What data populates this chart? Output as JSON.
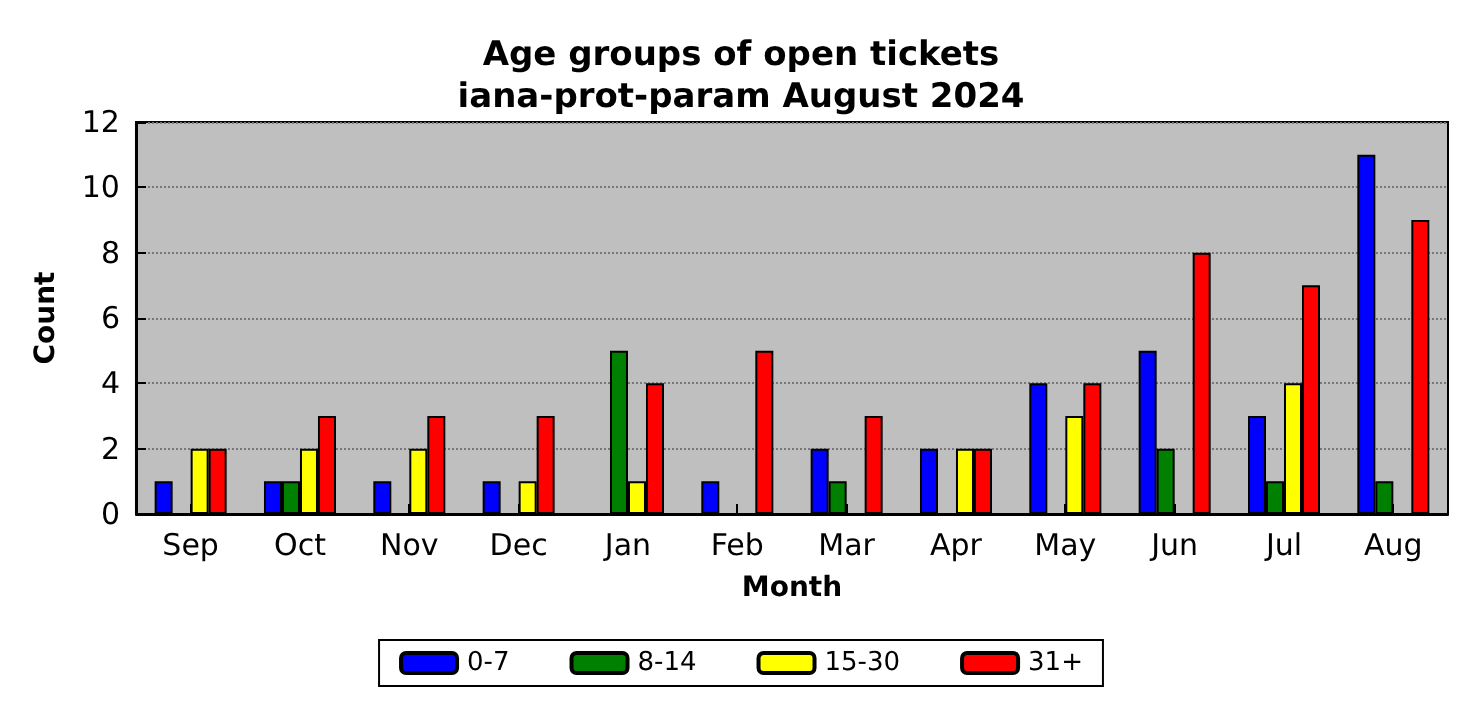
{
  "chart_data": {
    "type": "bar",
    "title": "Age groups of open tickets\niana-prot-param August 2024",
    "xlabel": "Month",
    "ylabel": "Count",
    "categories": [
      "Sep",
      "Oct",
      "Nov",
      "Dec",
      "Jan",
      "Feb",
      "Mar",
      "Apr",
      "May",
      "Jun",
      "Jul",
      "Aug"
    ],
    "series": [
      {
        "name": "0-7",
        "color": "#0000ff",
        "values": [
          1,
          1,
          1,
          1,
          0,
          1,
          2,
          2,
          4,
          5,
          3,
          11
        ]
      },
      {
        "name": "8-14",
        "color": "#008000",
        "values": [
          0,
          1,
          0,
          0,
          5,
          0,
          1,
          0,
          0,
          2,
          1,
          1
        ]
      },
      {
        "name": "15-30",
        "color": "#ffff00",
        "values": [
          2,
          2,
          2,
          1,
          1,
          0,
          0,
          2,
          3,
          0,
          4,
          0
        ]
      },
      {
        "name": "31+",
        "color": "#ff0000",
        "values": [
          2,
          3,
          3,
          3,
          4,
          5,
          3,
          2,
          4,
          8,
          7,
          9
        ]
      }
    ],
    "ylim": [
      0,
      12
    ],
    "yticks": [
      0,
      2,
      4,
      6,
      8,
      10,
      12
    ],
    "grid": "y",
    "legend": "bottom"
  }
}
